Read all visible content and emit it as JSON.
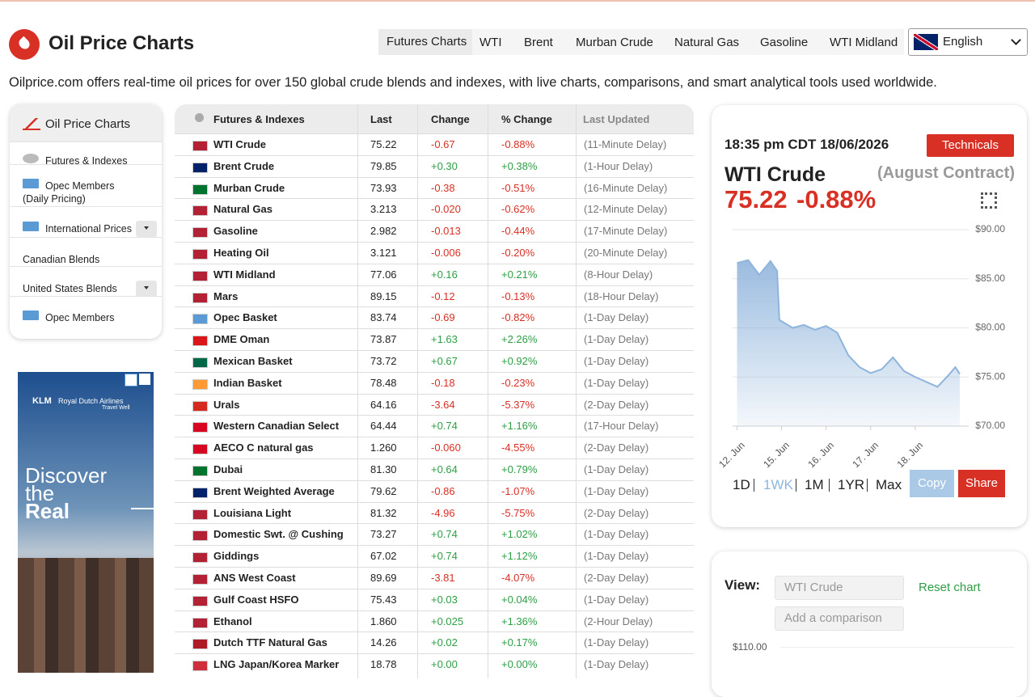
{
  "header": {
    "title": "Oil Price Charts",
    "nav": [
      "Futures Charts",
      "WTI",
      "Brent",
      "Murban Crude",
      "Natural Gas",
      "Gasoline",
      "WTI Midland"
    ],
    "language": "English"
  },
  "intro": "Oilprice.com offers real-time oil prices for over 150 global crude blends and indexes, with live charts, comparisons, and smart analytical tools used worldwide.",
  "sidebar": {
    "title": "Oil Price Charts",
    "items": [
      "Futures & Indexes",
      "Opec Members (Daily Pricing)",
      "International Prices",
      "Canadian Blends",
      "United States Blends",
      "Opec Members"
    ]
  },
  "ad": {
    "brand": "KLM",
    "tagline": "Royal Dutch Airlines",
    "subtag": "Travel Well",
    "headline": [
      "Discover",
      "the",
      "Real"
    ]
  },
  "table": {
    "columns": [
      "Futures & Indexes",
      "Last",
      "Change",
      "% Change",
      "Last Updated"
    ],
    "rows": [
      [
        "WTI Crude",
        "75.22",
        "-0.67",
        "-0.88%",
        "(11-Minute Delay)"
      ],
      [
        "Brent Crude",
        "79.85",
        "+0.30",
        "+0.38%",
        "(1-Hour Delay)"
      ],
      [
        "Murban Crude",
        "73.93",
        "-0.38",
        "-0.51%",
        "(16-Minute Delay)"
      ],
      [
        "Natural Gas",
        "3.213",
        "-0.020",
        "-0.62%",
        "(12-Minute Delay)"
      ],
      [
        "Gasoline",
        "2.982",
        "-0.013",
        "-0.44%",
        "(17-Minute Delay)"
      ],
      [
        "Heating Oil",
        "3.121",
        "-0.006",
        "-0.20%",
        "(20-Minute Delay)"
      ],
      [
        "WTI Midland",
        "77.06",
        "+0.16",
        "+0.21%",
        "(8-Hour Delay)"
      ],
      [
        "Mars",
        "89.15",
        "-0.12",
        "-0.13%",
        "(18-Hour Delay)"
      ],
      [
        "Opec Basket",
        "83.74",
        "-0.69",
        "-0.82%",
        "(1-Day Delay)"
      ],
      [
        "DME Oman",
        "73.87",
        "+1.63",
        "+2.26%",
        "(1-Day Delay)"
      ],
      [
        "Mexican Basket",
        "73.72",
        "+0.67",
        "+0.92%",
        "(1-Day Delay)"
      ],
      [
        "Indian Basket",
        "78.48",
        "-0.18",
        "-0.23%",
        "(1-Day Delay)"
      ],
      [
        "Urals",
        "64.16",
        "-3.64",
        "-5.37%",
        "(2-Day Delay)"
      ],
      [
        "Western Canadian Select",
        "64.44",
        "+0.74",
        "+1.16%",
        "(17-Hour Delay)"
      ],
      [
        "AECO C natural gas",
        "1.260",
        "-0.060",
        "-4.55%",
        "(2-Day Delay)"
      ],
      [
        "Dubai",
        "81.30",
        "+0.64",
        "+0.79%",
        "(1-Day Delay)"
      ],
      [
        "Brent Weighted Average",
        "79.62",
        "-0.86",
        "-1.07%",
        "(1-Day Delay)"
      ],
      [
        "Louisiana Light",
        "81.32",
        "-4.96",
        "-5.75%",
        "(2-Day Delay)"
      ],
      [
        "Domestic Swt. @ Cushing",
        "73.27",
        "+0.74",
        "+1.02%",
        "(1-Day Delay)"
      ],
      [
        "Giddings",
        "67.02",
        "+0.74",
        "+1.12%",
        "(1-Day Delay)"
      ],
      [
        "ANS West Coast",
        "89.69",
        "-3.81",
        "-4.07%",
        "(2-Day Delay)"
      ],
      [
        "Gulf Coast HSFO",
        "75.43",
        "+0.03",
        "+0.04%",
        "(1-Day Delay)"
      ],
      [
        "Ethanol",
        "1.860",
        "+0.025",
        "+1.36%",
        "(2-Hour Delay)"
      ],
      [
        "Dutch TTF Natural Gas",
        "14.26",
        "+0.02",
        "+0.17%",
        "(1-Day Delay)"
      ],
      [
        "LNG Japan/Korea Marker",
        "18.78",
        "+0.00",
        "+0.00%",
        "(1-Day Delay)"
      ]
    ]
  },
  "widget": {
    "timestamp": "18:35 pm CDT 18/06/2026",
    "technicals": "Technicals",
    "name": "WTI Crude",
    "contract": "(August Contract)",
    "price": "75.22",
    "change": "-0.88%",
    "ranges": [
      "1D",
      "1WK",
      "1M",
      "1YR",
      "Max"
    ],
    "copy": "Copy",
    "share": "Share"
  },
  "chart_data": {
    "type": "line",
    "color": "#8fb4dc",
    "x": [
      0,
      0.25,
      0.5,
      0.75,
      0.9,
      0.95,
      1.25,
      1.5,
      1.75,
      2.0,
      2.25,
      2.5,
      2.75,
      3.0,
      3.25,
      3.5,
      3.75,
      4.0,
      4.25,
      4.5,
      4.75,
      4.9,
      5.0
    ],
    "values": [
      86.6,
      86.9,
      85.4,
      86.8,
      85.8,
      80.8,
      80.0,
      80.3,
      79.8,
      80.2,
      79.5,
      77.2,
      76.0,
      75.4,
      75.8,
      77.0,
      75.6,
      75.0,
      74.5,
      74.0,
      75.2,
      76.0,
      75.3
    ],
    "xlim": [
      -0.1,
      5.2
    ],
    "xticks": [
      {
        "value": 0,
        "label": "12. Jun"
      },
      {
        "value": 1,
        "label": "15. Jun"
      },
      {
        "value": 2,
        "label": "16. Jun"
      },
      {
        "value": 3,
        "label": "17. Jun"
      },
      {
        "value": 4,
        "label": "18. Jun"
      }
    ],
    "ylim": [
      70,
      90
    ],
    "yticks": [
      {
        "value": 70,
        "label": "$70.00"
      },
      {
        "value": 75,
        "label": "$75.00"
      },
      {
        "value": 80,
        "label": "$80.00"
      },
      {
        "value": 85,
        "label": "$85.00"
      },
      {
        "value": 90,
        "label": "$90.00"
      }
    ],
    "grid": true
  },
  "comparison": {
    "view_label": "View:",
    "select": "WTI Crude",
    "reset": "Reset chart",
    "add": "Add a comparison",
    "yticks": [
      {
        "value": 110,
        "label": "$110.00"
      }
    ]
  }
}
